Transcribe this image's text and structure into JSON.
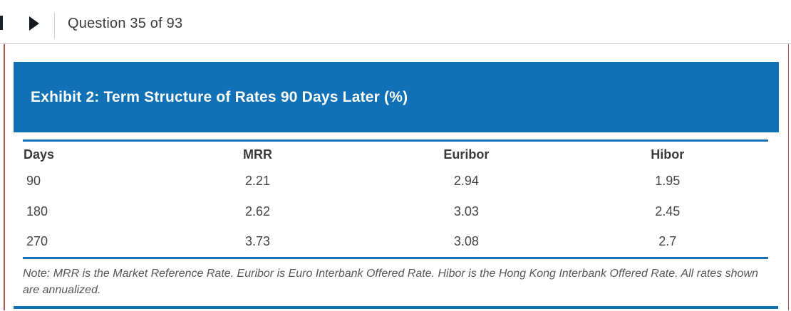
{
  "nav": {
    "question_label": "Question 35 of 93"
  },
  "exhibit": {
    "title": "Exhibit 2: Term Structure of Rates 90 Days Later (%)",
    "table": {
      "columns": [
        "Days",
        "MRR",
        "Euribor",
        "Hibor"
      ],
      "rows": [
        [
          "90",
          "2.21",
          "2.94",
          "1.95"
        ],
        [
          "180",
          "2.62",
          "3.03",
          "2.45"
        ],
        [
          "270",
          "3.73",
          "3.08",
          "2.7"
        ]
      ]
    },
    "note": "Note: MRR is the Market Reference Rate. Euribor is Euro Interbank Offered Rate. Hibor is the Hong Kong Interbank Offered Rate. All rates shown are annualized."
  },
  "chart_data": {
    "type": "table",
    "title": "Exhibit 2: Term Structure of Rates 90 Days Later (%)",
    "columns": [
      "Days",
      "MRR",
      "Euribor",
      "Hibor"
    ],
    "rows": [
      [
        90,
        2.21,
        2.94,
        1.95
      ],
      [
        180,
        2.62,
        3.03,
        2.45
      ],
      [
        270,
        3.73,
        3.08,
        2.7
      ]
    ]
  },
  "icons": {
    "next_icon": "play-triangle-right",
    "prev_icon": "clipped-nav-bar"
  },
  "colors": {
    "accent_blue": "#1171b6",
    "rule_blue": "#1a70b2",
    "rule_red": "#ae544d",
    "rule_gray": "#c8c8c8",
    "title_text": "#ffffff",
    "body_text": "#3c3c3c"
  }
}
